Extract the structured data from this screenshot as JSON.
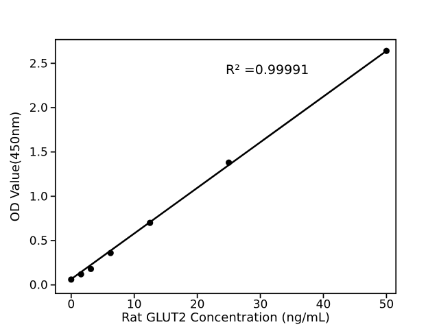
{
  "figure": {
    "background": "#ffffff",
    "foreground": "#000000"
  },
  "chart_data": {
    "type": "scatter",
    "xlabel": "Rat GLUT2 Concentration (ng/mL)",
    "ylabel": "OD Value(450nm)",
    "x": [
      0,
      1.5625,
      3.125,
      6.25,
      12.5,
      25,
      50
    ],
    "y": [
      0.06,
      0.12,
      0.18,
      0.36,
      0.7,
      1.38,
      2.64
    ],
    "fit_line": {
      "x": [
        0,
        50
      ],
      "y": [
        0.065,
        2.64
      ]
    },
    "annotation": {
      "text": "R² =0.99991",
      "x": 24.5,
      "y": 2.38
    },
    "x_ticks": [
      "0",
      "10",
      "20",
      "30",
      "40",
      "50"
    ],
    "y_ticks": [
      "0.0",
      "0.5",
      "1.0",
      "1.5",
      "2.0",
      "2.5"
    ],
    "xlim": [
      -2.5,
      51.5
    ],
    "ylim": [
      -0.097,
      2.768
    ],
    "grid": false,
    "legend": null,
    "marker_color": "#000000",
    "line_color": "#000000",
    "spine_color": "#000000"
  }
}
